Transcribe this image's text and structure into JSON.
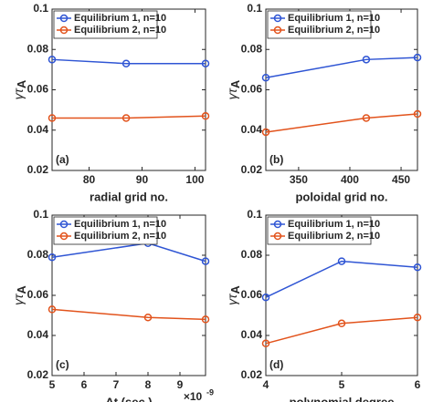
{
  "chart_data": [
    {
      "type": "line",
      "panel_label": "(a)",
      "xlabel": "radial grid no.",
      "ylabel": "γτ",
      "ylabel_sub": "A",
      "x": [
        73,
        87,
        102
      ],
      "xlim": [
        73,
        102
      ],
      "xticks": [
        80,
        90,
        100
      ],
      "ylim": [
        0.02,
        0.1
      ],
      "yticks": [
        0.02,
        0.04,
        0.06,
        0.08,
        0.1
      ],
      "legend": "upper left",
      "series": [
        {
          "name": "Equilibrium 1, n=10",
          "color": "#2f55d4",
          "values": [
            0.075,
            0.073,
            0.073
          ]
        },
        {
          "name": "Equilibrium 2, n=10",
          "color": "#e2531c",
          "values": [
            0.046,
            0.046,
            0.047
          ]
        }
      ]
    },
    {
      "type": "line",
      "panel_label": "(b)",
      "xlabel": "poloidal grid no.",
      "ylabel": "γτ",
      "ylabel_sub": "A",
      "x": [
        318,
        416,
        466
      ],
      "xlim": [
        318,
        466
      ],
      "xticks": [
        350,
        400,
        450
      ],
      "ylim": [
        0.02,
        0.1
      ],
      "yticks": [
        0.02,
        0.04,
        0.06,
        0.08,
        0.1
      ],
      "legend": "upper left",
      "series": [
        {
          "name": "Equilibrium 1, n=10",
          "color": "#2f55d4",
          "values": [
            0.066,
            0.075,
            0.076
          ]
        },
        {
          "name": "Equilibrium 2, n=10",
          "color": "#e2531c",
          "values": [
            0.039,
            0.046,
            0.048
          ]
        }
      ]
    },
    {
      "type": "line",
      "panel_label": "(c)",
      "xlabel": "Δt (sec.)",
      "x_multiplier": "×10",
      "x_multiplier_exp": "-9",
      "ylabel": "γτ",
      "ylabel_sub": "A",
      "x": [
        5,
        8,
        9.8
      ],
      "xlim": [
        5,
        9.8
      ],
      "xticks": [
        5,
        6,
        7,
        8,
        9
      ],
      "ylim": [
        0.02,
        0.1
      ],
      "yticks": [
        0.02,
        0.04,
        0.06,
        0.08,
        0.1
      ],
      "legend": "upper left",
      "series": [
        {
          "name": "Equilibrium 1, n=10",
          "color": "#2f55d4",
          "values": [
            0.079,
            0.086,
            0.077
          ]
        },
        {
          "name": "Equilibrium 2, n=10",
          "color": "#e2531c",
          "values": [
            0.053,
            0.049,
            0.048
          ]
        }
      ]
    },
    {
      "type": "line",
      "panel_label": "(d)",
      "xlabel": "polynomial degree",
      "ylabel": "γτ",
      "ylabel_sub": "A",
      "x": [
        4,
        5,
        6
      ],
      "xlim": [
        4,
        6
      ],
      "xticks": [
        4,
        5,
        6
      ],
      "ylim": [
        0.02,
        0.1
      ],
      "yticks": [
        0.02,
        0.04,
        0.06,
        0.08,
        0.1
      ],
      "legend": "upper left",
      "series": [
        {
          "name": "Equilibrium 1, n=10",
          "color": "#2f55d4",
          "values": [
            0.059,
            0.077,
            0.074
          ]
        },
        {
          "name": "Equilibrium 2, n=10",
          "color": "#e2531c",
          "values": [
            0.036,
            0.046,
            0.049
          ]
        }
      ]
    }
  ]
}
